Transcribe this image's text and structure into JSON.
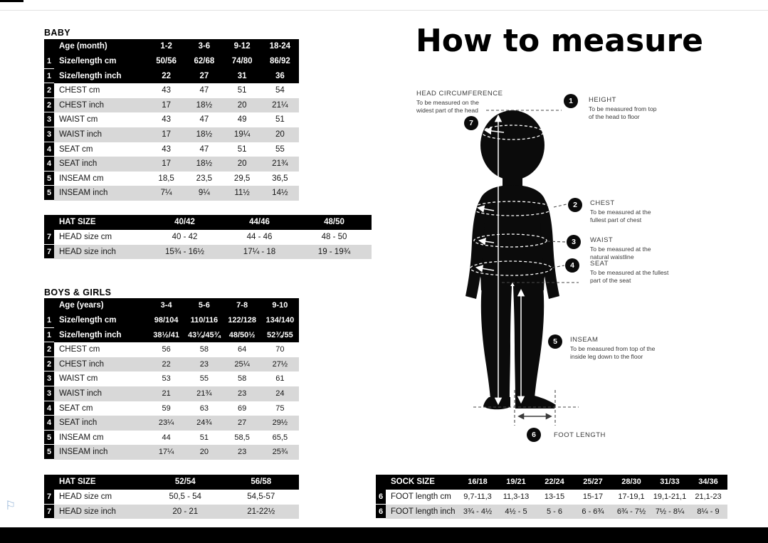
{
  "page": {
    "title": "How to measure"
  },
  "icons": {
    "flag_glyph": "⚐"
  },
  "tables": {
    "baby": {
      "title": "BABY",
      "header": [
        "Age (month)",
        "1-2",
        "3-6",
        "9-12",
        "18-24"
      ],
      "rows": [
        {
          "num": "1",
          "label": "Size/length cm",
          "values": [
            "50/56",
            "62/68",
            "74/80",
            "86/92"
          ],
          "style": "black"
        },
        {
          "num": "1",
          "label": "Size/length inch",
          "values": [
            "22",
            "27",
            "31",
            "36"
          ],
          "style": "black"
        },
        {
          "num": "2",
          "label": "CHEST cm",
          "values": [
            "43",
            "47",
            "51",
            "54"
          ],
          "style": "white"
        },
        {
          "num": "2",
          "label": "CHEST inch",
          "values": [
            "17",
            "18½",
            "20",
            "21¼"
          ],
          "style": "gray"
        },
        {
          "num": "3",
          "label": "WAIST cm",
          "values": [
            "43",
            "47",
            "49",
            "51"
          ],
          "style": "white"
        },
        {
          "num": "3",
          "label": "WAIST inch",
          "values": [
            "17",
            "18½",
            "19¼",
            "20"
          ],
          "style": "gray"
        },
        {
          "num": "4",
          "label": "SEAT cm",
          "values": [
            "43",
            "47",
            "51",
            "55"
          ],
          "style": "white"
        },
        {
          "num": "4",
          "label": "SEAT inch",
          "values": [
            "17",
            "18½",
            "20",
            "21¾"
          ],
          "style": "gray"
        },
        {
          "num": "5",
          "label": "INSEAM cm",
          "values": [
            "18,5",
            "23,5",
            "29,5",
            "36,5"
          ],
          "style": "white"
        },
        {
          "num": "5",
          "label": "INSEAM inch",
          "values": [
            "7¼",
            "9¼",
            "11½",
            "14½"
          ],
          "style": "gray"
        }
      ]
    },
    "baby_hat": {
      "header": [
        "HAT SIZE",
        "40/42",
        "44/46",
        "48/50"
      ],
      "rows": [
        {
          "num": "7",
          "label": "HEAD size cm",
          "values": [
            "40 - 42",
            "44 - 46",
            "48 - 50"
          ],
          "style": "white"
        },
        {
          "num": "7",
          "label": "HEAD size inch",
          "values": [
            "15¾ - 16½",
            "17¼ - 18",
            "19 - 19¾"
          ],
          "style": "gray"
        }
      ]
    },
    "kids": {
      "title": "BOYS & GIRLS",
      "header": [
        "Age (years)",
        "3-4",
        "5-6",
        "7-8",
        "9-10"
      ],
      "rows": [
        {
          "num": "1",
          "label": "Size/length cm",
          "values": [
            "98/104",
            "110/116",
            "122/128",
            "134/140"
          ],
          "style": "black"
        },
        {
          "num": "1",
          "label": "Size/length inch",
          "values": [
            "38½/41",
            "43¼/45¾",
            "48/50½",
            "52¾/55"
          ],
          "style": "black"
        },
        {
          "num": "2",
          "label": "CHEST cm",
          "values": [
            "56",
            "58",
            "64",
            "70"
          ],
          "style": "white"
        },
        {
          "num": "2",
          "label": "CHEST inch",
          "values": [
            "22",
            "23",
            "25¼",
            "27½"
          ],
          "style": "gray"
        },
        {
          "num": "3",
          "label": "WAIST cm",
          "values": [
            "53",
            "55",
            "58",
            "61"
          ],
          "style": "white"
        },
        {
          "num": "3",
          "label": "WAIST inch",
          "values": [
            "21",
            "21¾",
            "23",
            "24"
          ],
          "style": "gray"
        },
        {
          "num": "4",
          "label": "SEAT cm",
          "values": [
            "59",
            "63",
            "69",
            "75"
          ],
          "style": "white"
        },
        {
          "num": "4",
          "label": "SEAT inch",
          "values": [
            "23¼",
            "24¾",
            "27",
            "29½"
          ],
          "style": "gray"
        },
        {
          "num": "5",
          "label": "INSEAM cm",
          "values": [
            "44",
            "51",
            "58,5",
            "65,5"
          ],
          "style": "white"
        },
        {
          "num": "5",
          "label": "INSEAM inch",
          "values": [
            "17¼",
            "20",
            "23",
            "25¾"
          ],
          "style": "gray"
        }
      ]
    },
    "kids_hat": {
      "header": [
        "HAT SIZE",
        "52/54",
        "56/58"
      ],
      "rows": [
        {
          "num": "7",
          "label": "HEAD size cm",
          "values": [
            "50,5 - 54",
            "54,5-57"
          ],
          "style": "white"
        },
        {
          "num": "7",
          "label": "HEAD size inch",
          "values": [
            "20 - 21",
            "21-22½"
          ],
          "style": "gray"
        }
      ]
    },
    "sock": {
      "header": [
        "SOCK SIZE",
        "16/18",
        "19/21",
        "22/24",
        "25/27",
        "28/30",
        "31/33",
        "34/36"
      ],
      "rows": [
        {
          "num": "6",
          "label": "FOOT length cm",
          "values": [
            "9,7-11,3",
            "11,3-13",
            "13-15",
            "15-17",
            "17-19,1",
            "19,1-21,1",
            "21,1-23"
          ],
          "style": "white"
        },
        {
          "num": "6",
          "label": "FOOT length inch",
          "values": [
            "3¾ - 4½",
            "4½ - 5",
            "5 - 6",
            "6 - 6¾",
            "6¾ - 7½",
            "7½ - 8¼",
            "8¼ - 9"
          ],
          "style": "gray"
        }
      ]
    }
  },
  "diagram": {
    "annotations": [
      {
        "num": "1",
        "label": "HEIGHT",
        "desc": "To be measured from top\nof the head to floor"
      },
      {
        "num": "2",
        "label": "CHEST",
        "desc": "To be measured at the\nfullest part of chest"
      },
      {
        "num": "3",
        "label": "WAIST",
        "desc": "To be measured at the\nnatural waistline"
      },
      {
        "num": "4",
        "label": "SEAT",
        "desc": "To be measured at the fullest\npart of the seat"
      },
      {
        "num": "5",
        "label": "INSEAM",
        "desc": "To be measured from top of the\ninside leg down to the floor"
      },
      {
        "num": "6",
        "label": "FOOT LENGTH",
        "desc": ""
      },
      {
        "num": "7",
        "label": "HEAD CIRCUMFERENCE",
        "desc": "To be measured on the\nwidest part of the head"
      }
    ]
  }
}
